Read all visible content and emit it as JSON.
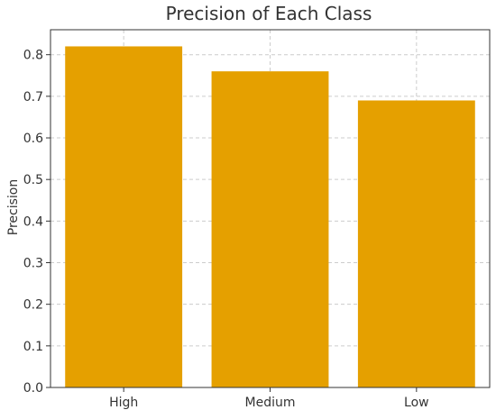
{
  "chart_data": {
    "type": "bar",
    "title": "Precision of Each Class",
    "xlabel": "",
    "ylabel": "Precision",
    "categories": [
      "High",
      "Medium",
      "Low"
    ],
    "values": [
      0.82,
      0.76,
      0.69
    ],
    "ylim": [
      0,
      0.86
    ],
    "yticks": [
      "0.0",
      "0.1",
      "0.2",
      "0.3",
      "0.4",
      "0.5",
      "0.6",
      "0.7",
      "0.8"
    ],
    "grid": true,
    "bar_color": "#E5A000"
  }
}
